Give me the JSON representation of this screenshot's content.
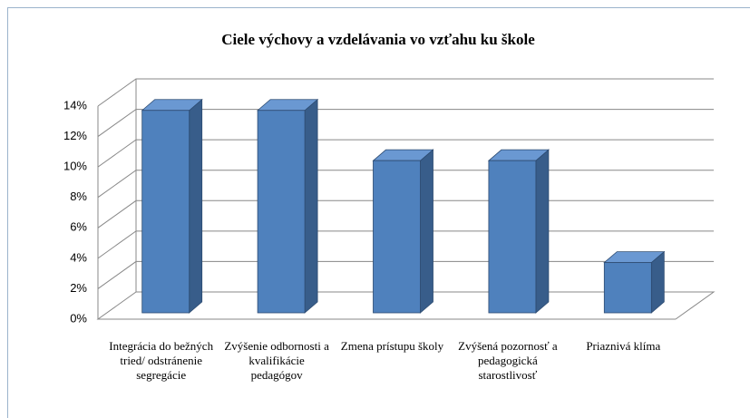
{
  "chart_data": {
    "type": "bar3d",
    "title": "Ciele výchovy a vzdelávania vo vzťahu ku škole",
    "categories": [
      "Integrácia do bežných tried/ odstránenie segregácie",
      "Zvýšenie odbornosti a kvalifikácie pedagógov",
      "Zmena prístupu školy",
      "Zvýšená pozornosť a pedagogická starostlivosť",
      "Priaznivá klíma"
    ],
    "values": [
      13.3,
      13.3,
      10,
      10,
      3.3
    ],
    "color": "#4f81bd",
    "ylim": [
      0,
      14
    ],
    "yticks": [
      {
        "value": 0,
        "label": "0%"
      },
      {
        "value": 2,
        "label": "2%"
      },
      {
        "value": 4,
        "label": "4%"
      },
      {
        "value": 6,
        "label": "6%"
      },
      {
        "value": 8,
        "label": "8%"
      },
      {
        "value": 10,
        "label": "10%"
      },
      {
        "value": 12,
        "label": "12%"
      },
      {
        "value": 14,
        "label": "14%"
      }
    ],
    "grid": true
  }
}
